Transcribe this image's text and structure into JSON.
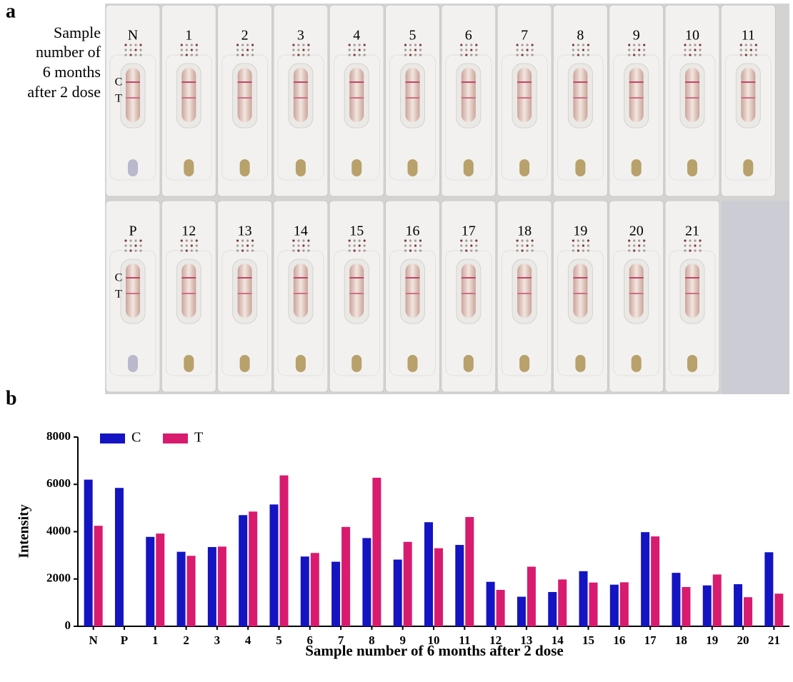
{
  "panel_a": {
    "label": "a",
    "side_label": [
      "Sample",
      "number of",
      "6 months",
      "after 2 dose"
    ],
    "c_label": "C",
    "t_label": "T",
    "row1": [
      "N",
      "1",
      "2",
      "3",
      "4",
      "5",
      "6",
      "7",
      "8",
      "9",
      "10",
      "11"
    ],
    "row2": [
      "P",
      "12",
      "13",
      "14",
      "15",
      "16",
      "17",
      "18",
      "19",
      "20",
      "21"
    ]
  },
  "panel_b_label": "b",
  "chart_data": {
    "type": "bar",
    "x_label": "Sample number of 6 months after 2 dose",
    "y_label": "Intensity",
    "categories": [
      "N",
      "P",
      "1",
      "2",
      "3",
      "4",
      "5",
      "6",
      "7",
      "8",
      "9",
      "10",
      "11",
      "12",
      "13",
      "14",
      "15",
      "16",
      "17",
      "18",
      "19",
      "20",
      "21"
    ],
    "series": [
      {
        "name": "C",
        "color": "#1414c2",
        "values": [
          6200,
          5850,
          3780,
          3150,
          3350,
          4700,
          5150,
          2950,
          2730,
          3730,
          2820,
          4400,
          3440,
          1880,
          1250,
          1450,
          2330,
          1760,
          3980,
          2260,
          1730,
          1780,
          3130
        ]
      },
      {
        "name": "T",
        "color": "#d81b6e",
        "values": [
          4250,
          0,
          3920,
          2980,
          3370,
          4850,
          6380,
          3100,
          4200,
          6280,
          3570,
          3300,
          4620,
          1540,
          2520,
          1980,
          1850,
          1860,
          3800,
          1660,
          2190,
          1230,
          1380
        ]
      }
    ],
    "ylim": [
      0,
      8000
    ],
    "yticks": [
      0,
      2000,
      4000,
      6000,
      8000
    ],
    "legend": "top-left"
  }
}
